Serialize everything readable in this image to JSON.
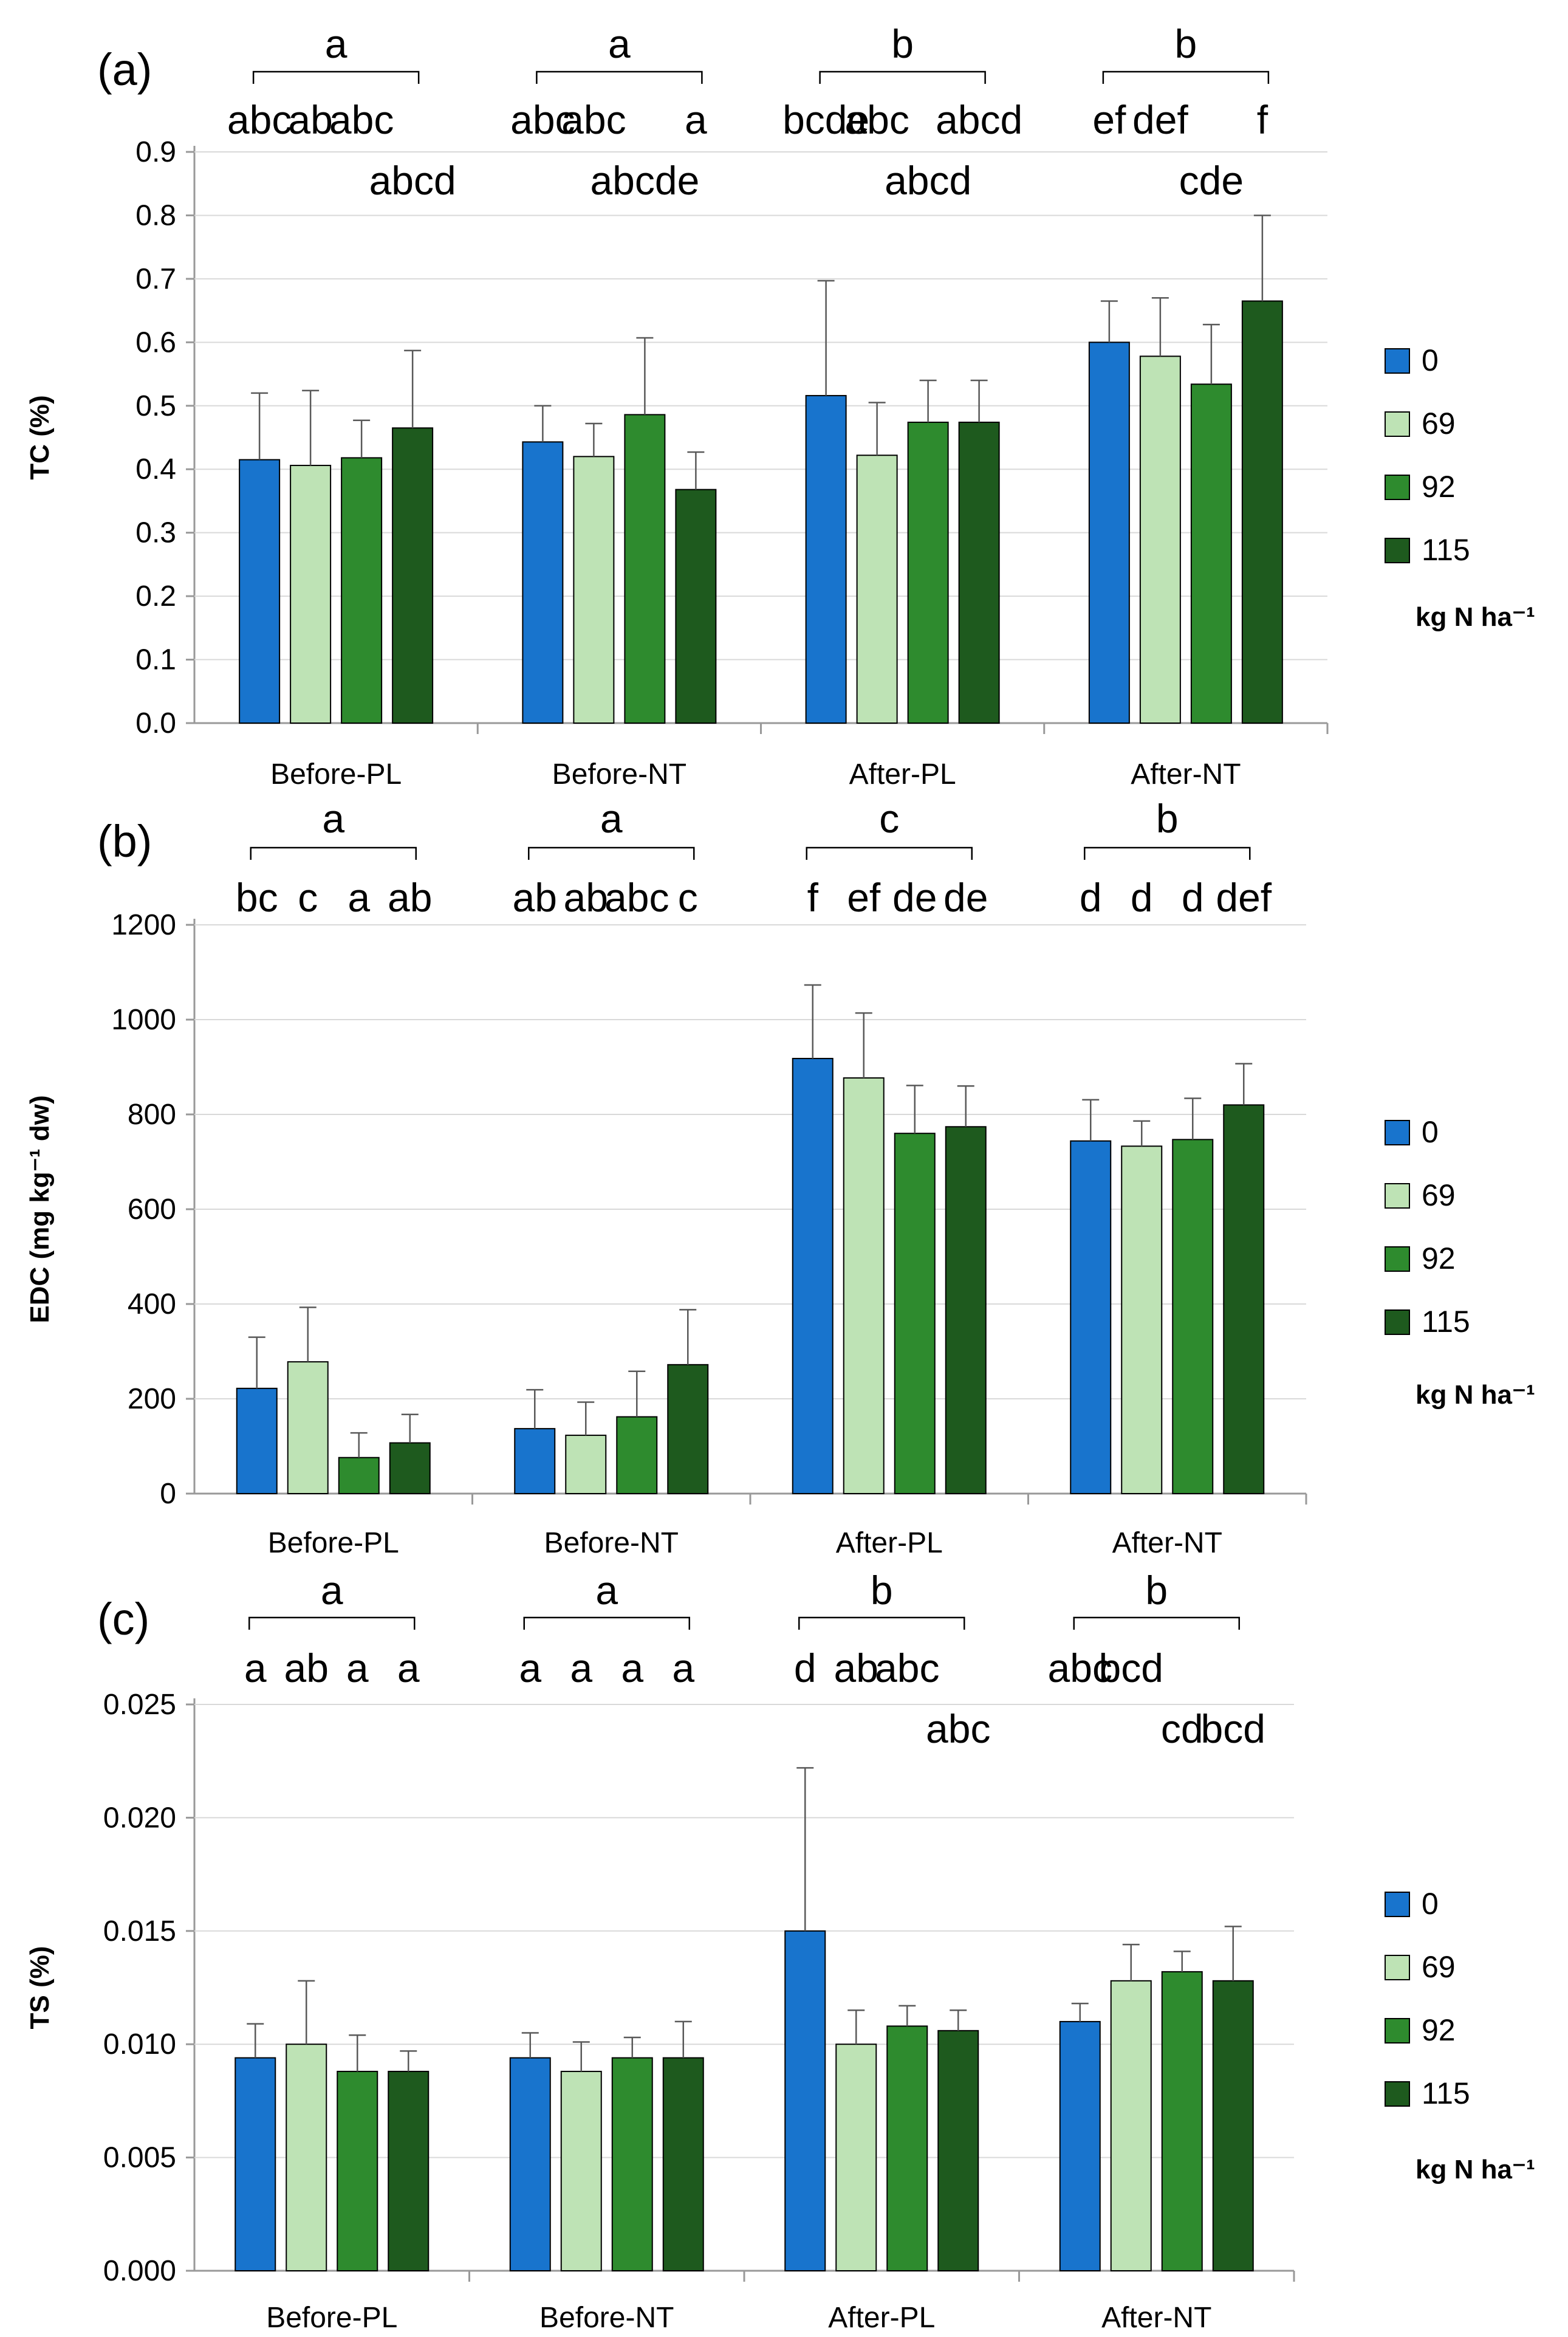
{
  "chart_data": [
    {
      "type": "bar",
      "panel_label": "(a)",
      "ylabel": "TC (%)",
      "ylim": [
        0,
        0.9
      ],
      "yticks": [
        "0.0",
        "0.1",
        "0.2",
        "0.3",
        "0.4",
        "0.5",
        "0.6",
        "0.7",
        "0.8",
        "0.9"
      ],
      "categories": [
        "Before-PL",
        "Before-NT",
        "After-PL",
        "After-NT"
      ],
      "series": [
        {
          "name": "0",
          "values": [
            0.415,
            0.443,
            0.516,
            0.6
          ],
          "errors": [
            0.105,
            0.057,
            0.181,
            0.065
          ]
        },
        {
          "name": "69",
          "values": [
            0.406,
            0.42,
            0.422,
            0.578
          ],
          "errors": [
            0.118,
            0.052,
            0.083,
            0.092
          ]
        },
        {
          "name": "92",
          "values": [
            0.418,
            0.486,
            0.474,
            0.534
          ],
          "errors": [
            0.059,
            0.121,
            0.066,
            0.094
          ]
        },
        {
          "name": "115",
          "values": [
            0.465,
            0.368,
            0.474,
            0.665
          ],
          "errors": [
            0.122,
            0.059,
            0.066,
            0.135
          ]
        }
      ],
      "group_letters": [
        "a",
        "a",
        "b",
        "b"
      ],
      "bar_letters": [
        [
          "abc",
          "ab",
          "abc",
          "abcd"
        ],
        [
          "abc",
          "abc",
          "abcde",
          "a"
        ],
        [
          "bcde",
          "abc",
          "abcd",
          "abcd"
        ],
        [
          "ef",
          "def",
          "cde",
          "f"
        ]
      ],
      "legend": {
        "title": "kg N ha⁻¹",
        "position": "right"
      }
    },
    {
      "type": "bar",
      "panel_label": "(b)",
      "ylabel": "EDC (mg kg⁻¹ dw)",
      "ylim": [
        0,
        1200
      ],
      "yticks": [
        "0",
        "200",
        "400",
        "600",
        "800",
        "1000",
        "1200"
      ],
      "categories": [
        "Before-PL",
        "Before-NT",
        "After-PL",
        "After-NT"
      ],
      "series": [
        {
          "name": "0",
          "values": [
            222,
            137,
            918,
            744
          ],
          "errors": [
            108,
            82,
            155,
            87
          ]
        },
        {
          "name": "69",
          "values": [
            278,
            123,
            877,
            733
          ],
          "errors": [
            115,
            70,
            137,
            53
          ]
        },
        {
          "name": "92",
          "values": [
            76,
            162,
            760,
            747
          ],
          "errors": [
            52,
            96,
            101,
            87
          ]
        },
        {
          "name": "115",
          "values": [
            107,
            272,
            774,
            820
          ],
          "errors": [
            60,
            116,
            86,
            87
          ]
        }
      ],
      "group_letters": [
        "a",
        "a",
        "c",
        "b"
      ],
      "bar_letters": [
        [
          "bc",
          "c",
          "a",
          "ab"
        ],
        [
          "ab",
          "ab",
          "abc",
          "c"
        ],
        [
          "f",
          "ef",
          "de",
          "de"
        ],
        [
          "d",
          "d",
          "d",
          "def"
        ]
      ],
      "legend": {
        "title": "kg N ha⁻¹",
        "position": "right"
      }
    },
    {
      "type": "bar",
      "panel_label": "(c)",
      "ylabel": "TS (%)",
      "ylim": [
        0,
        0.025
      ],
      "yticks": [
        "0.000",
        "0.005",
        "0.010",
        "0.015",
        "0.020",
        "0.025"
      ],
      "categories": [
        "Before-PL",
        "Before-NT",
        "After-PL",
        "After-NT"
      ],
      "series": [
        {
          "name": "0",
          "values": [
            0.0094,
            0.0094,
            0.015,
            0.011
          ],
          "errors": [
            0.0015,
            0.0011,
            0.0072,
            0.0008
          ]
        },
        {
          "name": "69",
          "values": [
            0.01,
            0.0088,
            0.01,
            0.0128
          ],
          "errors": [
            0.0028,
            0.0013,
            0.0015,
            0.0016
          ]
        },
        {
          "name": "92",
          "values": [
            0.0088,
            0.0094,
            0.0108,
            0.0132
          ],
          "errors": [
            0.0016,
            0.0009,
            0.0009,
            0.0009
          ]
        },
        {
          "name": "115",
          "values": [
            0.0088,
            0.0094,
            0.0106,
            0.0128
          ],
          "errors": [
            0.0009,
            0.0016,
            0.0009,
            0.0024
          ]
        }
      ],
      "group_letters": [
        "a",
        "a",
        "b",
        "b"
      ],
      "bar_letters": [
        [
          "a",
          "ab",
          "a",
          "a"
        ],
        [
          "a",
          "a",
          "a",
          "a"
        ],
        [
          "d",
          "ab",
          "abc",
          "abc"
        ],
        [
          "abc",
          "bcd",
          "cd",
          "bcd"
        ]
      ],
      "legend": {
        "title": "kg N ha⁻¹",
        "position": "right"
      }
    }
  ],
  "colors": {
    "series": [
      "#1874CD",
      "#BEE3B5",
      "#2E8B2E",
      "#1E5A1E"
    ],
    "axis": "#999999",
    "error_bar": "#595959"
  }
}
